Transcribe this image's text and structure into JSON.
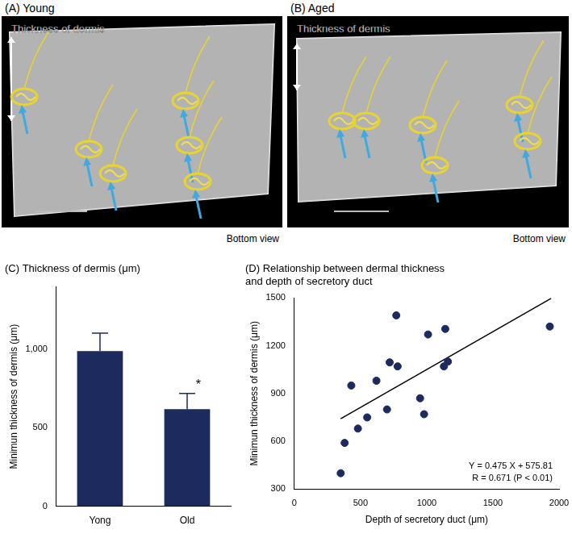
{
  "panels": [
    {
      "label": "(A) Young",
      "annotation": "Thickness of dermis",
      "view": "Bottom view"
    },
    {
      "label": "(B) Aged",
      "annotation": "Thickness of dermis",
      "view": "Bottom view"
    }
  ],
  "chart_data": [
    {
      "type": "bar",
      "panel": "(C)",
      "title": "Thickness of dermis (μm)",
      "y_label": "Minimun thickness of dermis (μm)",
      "categories": [
        "Yong",
        "Old"
      ],
      "values": [
        990,
        620
      ],
      "errors": [
        115,
        100
      ],
      "color": "#1c2a5e",
      "ylim": [
        0,
        1400
      ],
      "yticks": [
        0,
        500,
        {
          "value": 1000,
          "label": "1,000"
        }
      ],
      "grid": false,
      "annotations": [
        {
          "text": "*",
          "category": "Old"
        }
      ]
    },
    {
      "type": "scatter",
      "panel": "(D)",
      "title": [
        "Relationship between dermal thickness",
        "and depth of secretory duct"
      ],
      "x_label": "Depth of secretory duct (μm)",
      "y_label": "Minimun thickness of dermis (μm)",
      "x": [
        350,
        380,
        430,
        480,
        550,
        620,
        700,
        720,
        770,
        780,
        950,
        980,
        1010,
        1130,
        1140,
        1160,
        1930
      ],
      "values": [
        400,
        590,
        950,
        680,
        750,
        980,
        800,
        1095,
        1390,
        1070,
        870,
        770,
        1270,
        1070,
        1305,
        1100,
        1320
      ],
      "color": "#1c2a5e",
      "marker": "circle",
      "trend_line": {
        "x": [
          350,
          1940
        ],
        "y": [
          742,
          1497
        ]
      },
      "xlim": [
        0,
        2000
      ],
      "xticks": [
        0,
        500,
        1000,
        1500,
        2000
      ],
      "ylim": [
        300,
        1500
      ],
      "yticks": [
        300,
        600,
        900,
        1200,
        1500
      ],
      "grid": false,
      "annotations": [
        "Y = 0.475 X + 575.81",
        "R = 0.671 (P < 0.01)"
      ]
    }
  ]
}
